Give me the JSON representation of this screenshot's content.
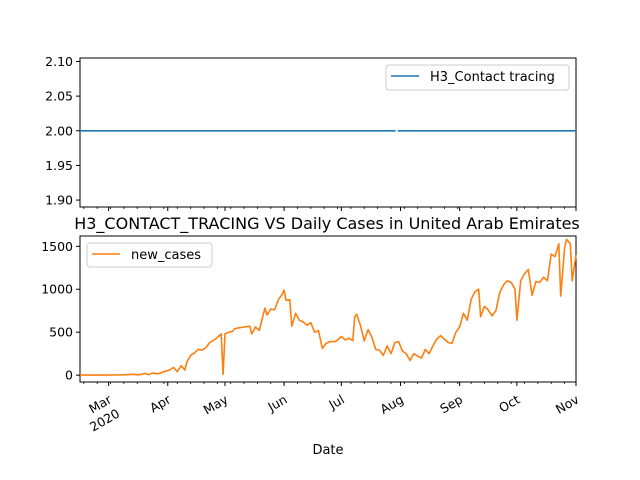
{
  "chart_data": [
    {
      "type": "line",
      "title": "",
      "xlabel": "",
      "ylabel": "",
      "ylim": [
        1.89,
        2.105
      ],
      "yticks": [
        "1.90",
        "1.95",
        "2.00",
        "2.05",
        "2.10"
      ],
      "ytick_values": [
        1.9,
        1.95,
        2.0,
        2.05,
        2.1
      ],
      "legend_position": "upper right",
      "series": [
        {
          "name": "H3_Contact tracing",
          "color": "#1f77b4",
          "constant_value": 2.0,
          "gap_near": "2020-07-30"
        }
      ]
    },
    {
      "type": "line",
      "title": "H3_CONTACT_TRACING VS Daily Cases in United Arab Emirates",
      "xlabel": "Date",
      "ylabel": "",
      "ylim": [
        -80,
        1620
      ],
      "yticks": [
        "0",
        "500",
        "1000",
        "1500"
      ],
      "ytick_values": [
        0,
        500,
        1000,
        1500
      ],
      "legend_position": "upper left",
      "xlim": [
        "2020-02-15",
        "2020-11-01"
      ],
      "xticks": [
        {
          "date": "2020-03-01",
          "label": "Mar",
          "sublabel": "2020"
        },
        {
          "date": "2020-04-01",
          "label": "Apr",
          "sublabel": ""
        },
        {
          "date": "2020-05-01",
          "label": "May",
          "sublabel": ""
        },
        {
          "date": "2020-06-01",
          "label": "Jun",
          "sublabel": ""
        },
        {
          "date": "2020-07-01",
          "label": "Jul",
          "sublabel": ""
        },
        {
          "date": "2020-08-01",
          "label": "Aug",
          "sublabel": ""
        },
        {
          "date": "2020-09-01",
          "label": "Sep",
          "sublabel": ""
        },
        {
          "date": "2020-10-01",
          "label": "Oct",
          "sublabel": ""
        },
        {
          "date": "2020-11-01",
          "label": "Nov",
          "sublabel": ""
        }
      ],
      "series": [
        {
          "name": "new_cases",
          "color": "#ff7f0e",
          "points": [
            [
              "2020-02-15",
              0
            ],
            [
              "2020-02-25",
              0
            ],
            [
              "2020-03-05",
              2
            ],
            [
              "2020-03-10",
              5
            ],
            [
              "2020-03-14",
              10
            ],
            [
              "2020-03-17",
              3
            ],
            [
              "2020-03-20",
              20
            ],
            [
              "2020-03-22",
              5
            ],
            [
              "2020-03-24",
              25
            ],
            [
              "2020-03-27",
              15
            ],
            [
              "2020-03-30",
              40
            ],
            [
              "2020-04-02",
              60
            ],
            [
              "2020-04-04",
              90
            ],
            [
              "2020-04-06",
              40
            ],
            [
              "2020-04-08",
              110
            ],
            [
              "2020-04-10",
              60
            ],
            [
              "2020-04-11",
              150
            ],
            [
              "2020-04-13",
              230
            ],
            [
              "2020-04-15",
              260
            ],
            [
              "2020-04-17",
              300
            ],
            [
              "2020-04-19",
              290
            ],
            [
              "2020-04-21",
              320
            ],
            [
              "2020-04-23",
              380
            ],
            [
              "2020-04-26",
              420
            ],
            [
              "2020-04-28",
              460
            ],
            [
              "2020-04-29",
              480
            ],
            [
              "2020-04-30",
              10
            ],
            [
              "2020-05-01",
              480
            ],
            [
              "2020-05-03",
              500
            ],
            [
              "2020-05-05",
              510
            ],
            [
              "2020-05-06",
              540
            ],
            [
              "2020-05-08",
              550
            ],
            [
              "2020-05-11",
              560
            ],
            [
              "2020-05-14",
              570
            ],
            [
              "2020-05-15",
              480
            ],
            [
              "2020-05-17",
              560
            ],
            [
              "2020-05-19",
              520
            ],
            [
              "2020-05-21",
              700
            ],
            [
              "2020-05-22",
              780
            ],
            [
              "2020-05-23",
              700
            ],
            [
              "2020-05-25",
              770
            ],
            [
              "2020-05-27",
              760
            ],
            [
              "2020-05-29",
              880
            ],
            [
              "2020-05-31",
              940
            ],
            [
              "2020-06-01",
              990
            ],
            [
              "2020-06-02",
              870
            ],
            [
              "2020-06-04",
              880
            ],
            [
              "2020-06-05",
              570
            ],
            [
              "2020-06-07",
              720
            ],
            [
              "2020-06-09",
              640
            ],
            [
              "2020-06-11",
              620
            ],
            [
              "2020-06-13",
              580
            ],
            [
              "2020-06-15",
              610
            ],
            [
              "2020-06-17",
              500
            ],
            [
              "2020-06-19",
              520
            ],
            [
              "2020-06-21",
              310
            ],
            [
              "2020-06-23",
              370
            ],
            [
              "2020-06-25",
              390
            ],
            [
              "2020-06-28",
              390
            ],
            [
              "2020-07-01",
              450
            ],
            [
              "2020-07-03",
              410
            ],
            [
              "2020-07-05",
              430
            ],
            [
              "2020-07-07",
              400
            ],
            [
              "2020-07-08",
              680
            ],
            [
              "2020-07-09",
              710
            ],
            [
              "2020-07-11",
              580
            ],
            [
              "2020-07-13",
              400
            ],
            [
              "2020-07-15",
              530
            ],
            [
              "2020-07-17",
              440
            ],
            [
              "2020-07-19",
              300
            ],
            [
              "2020-07-21",
              290
            ],
            [
              "2020-07-23",
              230
            ],
            [
              "2020-07-25",
              340
            ],
            [
              "2020-07-27",
              250
            ],
            [
              "2020-07-29",
              380
            ],
            [
              "2020-07-31",
              390
            ],
            [
              "2020-08-02",
              280
            ],
            [
              "2020-08-04",
              250
            ],
            [
              "2020-08-06",
              170
            ],
            [
              "2020-08-08",
              250
            ],
            [
              "2020-08-10",
              220
            ],
            [
              "2020-08-12",
              200
            ],
            [
              "2020-08-14",
              300
            ],
            [
              "2020-08-16",
              250
            ],
            [
              "2020-08-18",
              340
            ],
            [
              "2020-08-20",
              420
            ],
            [
              "2020-08-22",
              460
            ],
            [
              "2020-08-24",
              420
            ],
            [
              "2020-08-26",
              380
            ],
            [
              "2020-08-28",
              370
            ],
            [
              "2020-08-30",
              500
            ],
            [
              "2020-09-01",
              560
            ],
            [
              "2020-09-03",
              720
            ],
            [
              "2020-09-05",
              640
            ],
            [
              "2020-09-07",
              880
            ],
            [
              "2020-09-09",
              970
            ],
            [
              "2020-09-11",
              1000
            ],
            [
              "2020-09-12",
              680
            ],
            [
              "2020-09-14",
              800
            ],
            [
              "2020-09-16",
              760
            ],
            [
              "2020-09-18",
              690
            ],
            [
              "2020-09-20",
              750
            ],
            [
              "2020-09-22",
              960
            ],
            [
              "2020-09-24",
              1050
            ],
            [
              "2020-09-26",
              1100
            ],
            [
              "2020-09-28",
              1080
            ],
            [
              "2020-09-30",
              1000
            ],
            [
              "2020-10-01",
              640
            ],
            [
              "2020-10-03",
              1100
            ],
            [
              "2020-10-05",
              1180
            ],
            [
              "2020-10-07",
              1230
            ],
            [
              "2020-10-09",
              930
            ],
            [
              "2020-10-11",
              1090
            ],
            [
              "2020-10-13",
              1080
            ],
            [
              "2020-10-15",
              1140
            ],
            [
              "2020-10-17",
              1100
            ],
            [
              "2020-10-19",
              1410
            ],
            [
              "2020-10-21",
              1380
            ],
            [
              "2020-10-23",
              1530
            ],
            [
              "2020-10-24",
              920
            ],
            [
              "2020-10-26",
              1480
            ],
            [
              "2020-10-27",
              1580
            ],
            [
              "2020-10-29",
              1530
            ],
            [
              "2020-10-30",
              1100
            ],
            [
              "2020-11-01",
              1400
            ]
          ]
        }
      ]
    }
  ]
}
